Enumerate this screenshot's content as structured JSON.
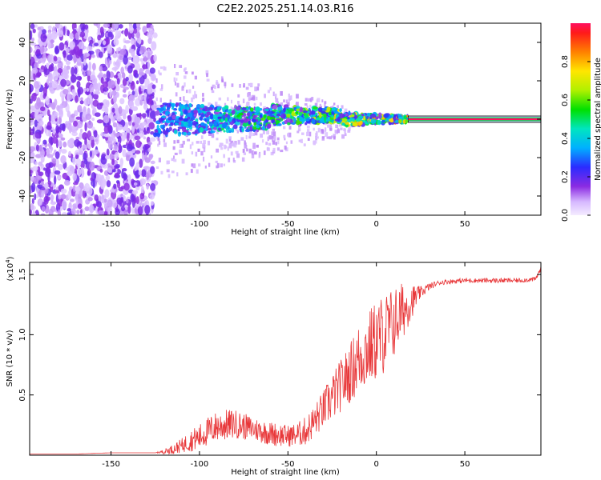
{
  "figure": {
    "title": "C2E2.2025.251.14.03.R16"
  },
  "chart_data": [
    {
      "type": "heatmap",
      "xlabel": "Height of straight line (km)",
      "ylabel": "Frequency (Hz)",
      "xlim": [
        -196,
        93
      ],
      "ylim": [
        -50,
        50
      ],
      "xticks": [
        -150,
        -100,
        -50,
        0,
        50
      ],
      "yticks": [
        -40,
        -20,
        0,
        20,
        40
      ],
      "colorbar": {
        "label": "Normalized spectral amplitude",
        "range": [
          0,
          1
        ],
        "ticks": [
          0.0,
          0.2,
          0.4,
          0.6,
          0.8
        ]
      },
      "regions": [
        {
          "x_range": [
            -196,
            -125
          ],
          "description_level": 0.12
        },
        {
          "x_range": [
            -125,
            18
          ],
          "center_hz": 0,
          "level": 0.35
        },
        {
          "x_range": [
            18,
            93
          ],
          "center_hz": 0,
          "level": 1.0
        }
      ]
    },
    {
      "type": "line",
      "xlabel": "Height of straight line (km)",
      "ylabel": "SNR (10 * v/v)",
      "y_multiplier": "(x10",
      "y_multiplier_exp": "4",
      "xlim": [
        -196,
        93
      ],
      "ylim": [
        0,
        1.6
      ],
      "xticks": [
        -150,
        -100,
        -50,
        0,
        50
      ],
      "yticks": [
        0.5,
        1.0,
        1.5
      ],
      "color": "#e8383a",
      "series": [
        {
          "x": [
            -196,
            -170,
            -150,
            -140,
            -130,
            -125,
            -120,
            -115,
            -110,
            -105,
            -100,
            -95,
            -90,
            -85,
            -80,
            -75,
            -70,
            -65,
            -60,
            -55,
            -50,
            -45,
            -40,
            -35,
            -30,
            -25,
            -20,
            -15,
            -10,
            -5,
            0,
            5,
            10,
            15,
            20,
            25,
            30,
            35,
            40,
            50,
            60,
            70,
            80,
            90,
            93
          ],
          "y": [
            0.01,
            0.01,
            0.02,
            0.02,
            0.02,
            0.02,
            0.03,
            0.05,
            0.08,
            0.12,
            0.15,
            0.2,
            0.24,
            0.25,
            0.26,
            0.24,
            0.22,
            0.2,
            0.18,
            0.17,
            0.16,
            0.17,
            0.2,
            0.28,
            0.38,
            0.48,
            0.58,
            0.68,
            0.8,
            0.88,
            0.95,
            1.02,
            1.1,
            1.2,
            1.28,
            1.35,
            1.4,
            1.43,
            1.44,
            1.45,
            1.45,
            1.45,
            1.45,
            1.46,
            1.55
          ],
          "noise_amp": [
            0.0,
            0.0,
            0.0,
            0.0,
            0.0,
            0.0,
            0.02,
            0.04,
            0.06,
            0.09,
            0.11,
            0.12,
            0.13,
            0.13,
            0.12,
            0.11,
            0.1,
            0.1,
            0.1,
            0.1,
            0.09,
            0.1,
            0.12,
            0.14,
            0.16,
            0.2,
            0.22,
            0.25,
            0.3,
            0.32,
            0.34,
            0.34,
            0.3,
            0.24,
            0.14,
            0.05,
            0.03,
            0.02,
            0.02,
            0.02,
            0.02,
            0.02,
            0.02,
            0.02,
            0.02
          ]
        }
      ]
    }
  ]
}
